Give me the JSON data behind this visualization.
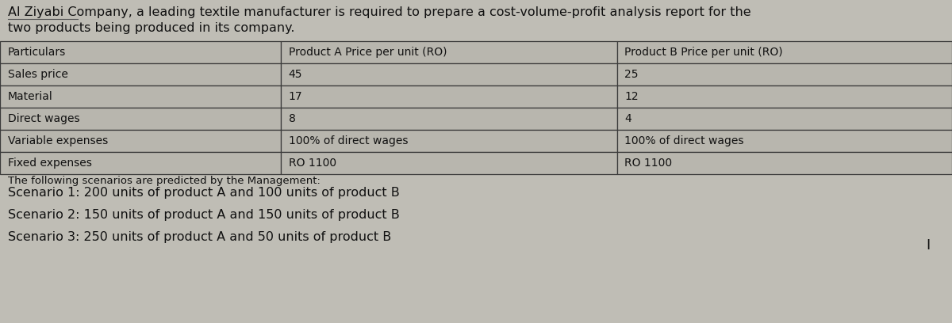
{
  "intro_text_line1": "Al Ziyabi Company, a leading textile manufacturer is required to prepare a cost-volume-profit analysis report for the",
  "intro_text_line2": "two products being produced in its company.",
  "table_headers": [
    "Particulars",
    "Product A Price per unit (RO)",
    "Product B Price per unit (RO)"
  ],
  "table_rows": [
    [
      "Sales price",
      "45",
      "25"
    ],
    [
      "Material",
      "17",
      "12"
    ],
    [
      "Direct wages",
      "8",
      "4"
    ],
    [
      "Variable expenses",
      "100% of direct wages",
      "100% of direct wages"
    ],
    [
      "Fixed expenses",
      "RO 1100",
      "RO 1100"
    ]
  ],
  "scenario_header": "The following scenarios are predicted by the Management:",
  "scenarios": [
    "Scenario 1: 200 units of product A and 100 units of product B",
    "Scenario 2: 150 units of product A and 150 units of product B",
    "Scenario 3: 250 units of product A and 50 units of product B"
  ],
  "bg_color": "#bfbdb5",
  "table_bg": "#b8b6ae",
  "table_border_color": "#3a3a3a",
  "text_color": "#111111",
  "fig_width": 12.0,
  "fig_height": 4.08,
  "col_boundaries": [
    0.0,
    0.295,
    0.648,
    1.0
  ],
  "intro_fontsize": 11.5,
  "table_fontsize": 10.0,
  "scenario_fontsize": 11.5
}
